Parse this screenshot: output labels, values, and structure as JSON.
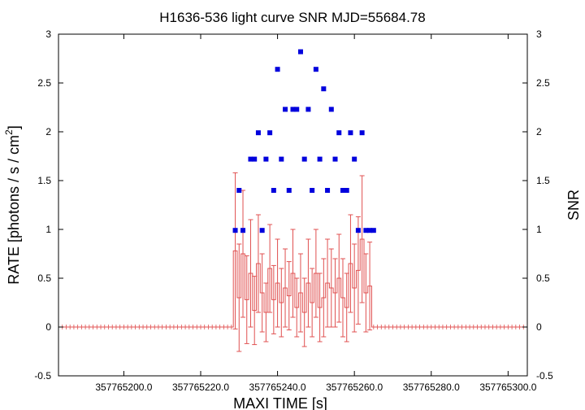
{
  "chart_data": {
    "type": "scatter",
    "title": "H1636-536 light curve  SNR MJD=55684.78",
    "xlabel": "MAXI TIME [s]",
    "ylabel_left": "RATE [photons / s / cm",
    "ylabel_left_sup": "2",
    "ylabel_left_tail": "]",
    "ylabel_right": "SNR",
    "xlim": [
      357765183.0,
      357765305.0
    ],
    "ylim": [
      -0.5,
      3
    ],
    "x_ticks": [
      357765200,
      357765220,
      357765240,
      357765260,
      357765280,
      357765300
    ],
    "x_tick_labels": [
      "357765200.0",
      "357765220.0",
      "357765240.0",
      "357765260.0",
      "357765280.0",
      "357765300.0"
    ],
    "y_ticks": [
      -0.5,
      0,
      0.5,
      1,
      1.5,
      2,
      2.5,
      3
    ],
    "y_tick_labels": [
      "-0.5",
      "0",
      "0.5",
      "1",
      "1.5",
      "2",
      "2.5",
      "3"
    ],
    "y_right_tick_labels": [
      "-0.5",
      "0",
      "0.5",
      "1",
      "1.5",
      "2",
      "2.5",
      "3"
    ],
    "grid": false,
    "colors": {
      "rate": "#e05050",
      "snr": "#0000dd"
    },
    "series": [
      {
        "kind": "rate_errorbar",
        "x": [
          357765229,
          357765230,
          357765231,
          357765232,
          357765233,
          357765234,
          357765235,
          357765236,
          357765237,
          357765238,
          357765239,
          357765240,
          357765241,
          357765242,
          357765243,
          357765244,
          357765245,
          357765246,
          357765247,
          357765248,
          357765249,
          357765250,
          357765251,
          357765252,
          357765253,
          357765254,
          357765255,
          357765256,
          357765257,
          357765258,
          357765259,
          357765260,
          357765261,
          357765262,
          357765263,
          357765264
        ],
        "y": [
          0.78,
          0.3,
          0.75,
          0.28,
          0.55,
          0.17,
          0.65,
          0.35,
          0.15,
          0.6,
          0.28,
          0.45,
          0.25,
          0.4,
          0.32,
          0.55,
          0.2,
          0.35,
          0.15,
          0.45,
          0.25,
          0.55,
          0.2,
          0.3,
          0.45,
          0.4,
          0.35,
          0.5,
          0.3,
          0.2,
          0.65,
          0.4,
          0.58,
          0.9,
          0.35,
          0.42
        ],
        "err": [
          0.8,
          0.55,
          0.65,
          0.45,
          0.55,
          0.35,
          0.5,
          0.4,
          0.3,
          0.45,
          0.35,
          0.45,
          0.35,
          0.4,
          0.35,
          0.45,
          0.3,
          0.4,
          0.35,
          0.45,
          0.35,
          0.45,
          0.35,
          0.4,
          0.45,
          0.4,
          0.35,
          0.45,
          0.4,
          0.35,
          0.5,
          0.45,
          0.55,
          0.65,
          0.4,
          0.45
        ]
      },
      {
        "kind": "snr",
        "x": [
          357765229,
          357765230,
          357765231,
          357765233,
          357765234,
          357765235,
          357765236,
          357765237,
          357765238,
          357765239,
          357765240,
          357765241,
          357765242,
          357765243,
          357765244,
          357765245,
          357765246,
          357765247,
          357765248,
          357765249,
          357765250,
          357765251,
          357765252,
          357765253,
          357765254,
          357765255,
          357765256,
          357765257,
          357765258,
          357765259,
          357765260,
          357765261,
          357765262,
          357765263,
          357765264,
          357765265
        ],
        "y": [
          0.99,
          1.4,
          0.99,
          1.72,
          1.72,
          1.99,
          0.99,
          1.72,
          1.99,
          1.4,
          2.64,
          1.72,
          2.23,
          1.4,
          2.23,
          2.23,
          2.82,
          1.72,
          2.23,
          1.4,
          2.64,
          1.72,
          2.44,
          1.4,
          2.23,
          1.72,
          1.99,
          1.4,
          1.4,
          1.99,
          1.72,
          0.99,
          1.99,
          0.99,
          0.99,
          0.99
        ]
      }
    ]
  }
}
